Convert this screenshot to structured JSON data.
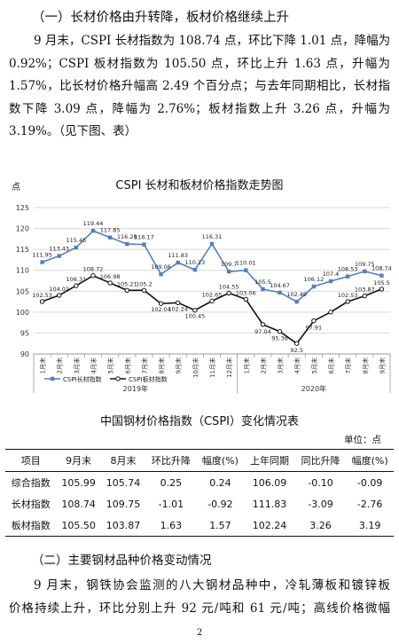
{
  "section1_title": "（一）长材价格由升转降，板材价格继续上升",
  "paragraph1_lines": [
    "9 月末，CSPI 长材指数为 108.74 点，环比下降 1.01 点，降幅为",
    "0.92%；CSPI 板材指数为 105.50 点，环比上升 1.63 点，升幅为",
    "1.57%，比长材价格升幅高 2.49 个百分点；与去年同期相比，长材指",
    "数下降 3.09 点，降幅为 2.76%；板材指数上升 3.26 点，升幅为",
    "3.19%。（见下图、表）"
  ],
  "chart_data": {
    "type": "line",
    "title": "CSPI 长材和板材价格指数走势图",
    "ylabel": "点",
    "ylim": [
      90,
      125
    ],
    "yticks": [
      90,
      95,
      100,
      105,
      110,
      115,
      120,
      125
    ],
    "categories": [
      "1月末",
      "2月末",
      "3月末",
      "4月末",
      "5月末",
      "6月末",
      "7月末",
      "8月末",
      "9月末",
      "10月末",
      "11月末",
      "12月末",
      "1月末",
      "2月末",
      "3月末",
      "4月末",
      "5月末",
      "6月末",
      "7月末",
      "8月末",
      "9月末"
    ],
    "year_groups": [
      {
        "label": "2019年",
        "count": 12
      },
      {
        "label": "2020年",
        "count": 9
      }
    ],
    "series": [
      {
        "name": "CSPI长材指数",
        "color": "#4f81bd",
        "values": [
          111.95,
          113.43,
          115.45,
          119.44,
          117.85,
          116.28,
          116.17,
          109.06,
          111.83,
          110.13,
          116.31,
          109.7,
          110.01,
          105.5,
          104.67,
          102.49,
          106.12,
          107.4,
          108.53,
          109.75,
          108.74
        ],
        "labels": [
          "111.95",
          "113.43",
          "115.45",
          "119.44",
          "117.85",
          "116.28",
          "116.17",
          "109.06",
          "111.83",
          "110.13",
          "116.31",
          "109.7",
          "110.01",
          "105.5",
          "104.67",
          "102.49",
          "106.12",
          "107.4",
          "108.53",
          "109.75",
          "108.74"
        ]
      },
      {
        "name": "CSPI板材指数",
        "color": "#111111",
        "values": [
          102.53,
          104.02,
          106.31,
          108.72,
          106.98,
          105.21,
          105.2,
          102.04,
          102.24,
          100.45,
          102.65,
          104.55,
          103.06,
          97.04,
          95.36,
          92.5,
          97.91,
          100.0,
          102.53,
          103.87,
          105.5
        ],
        "labels": [
          "102.53",
          "104.02",
          "106.31",
          "108.72",
          "106.98",
          "105.21",
          "105.2",
          "102.04",
          "102.24",
          "100.45",
          "102.65",
          "104.55",
          "103.06",
          "97.04",
          "95.36",
          "92.5",
          "97.91",
          "",
          "102.53",
          "103.87",
          "105.5"
        ]
      }
    ]
  },
  "table_title": "中国钢材价格指数（CSPI）变化情况表",
  "table_unit": "单位：点",
  "table": {
    "headers": [
      "项目",
      "9月末",
      "8月末",
      "环比升降",
      "幅度(%)",
      "上年同期",
      "同比升降",
      "幅度(%)"
    ],
    "rows": [
      [
        "综合指数",
        "105.99",
        "105.74",
        "0.25",
        "0.24",
        "106.09",
        "-0.10",
        "-0.09"
      ],
      [
        "长材指数",
        "108.74",
        "109.75",
        "-1.01",
        "-0.92",
        "111.83",
        "-3.09",
        "-2.76"
      ],
      [
        "板材指数",
        "105.50",
        "103.87",
        "1.63",
        "1.57",
        "102.24",
        "3.26",
        "3.19"
      ]
    ]
  },
  "section2_title": "（二）主要钢材品种价格变动情况",
  "paragraph2_lines": [
    "9 月末，钢铁协会监测的八大钢材品种中，冷轧薄板和镀锌板",
    "价格持续上升，环比分别上升 92 元/吨和 61 元/吨；高线价格微幅"
  ],
  "page_number": "2"
}
